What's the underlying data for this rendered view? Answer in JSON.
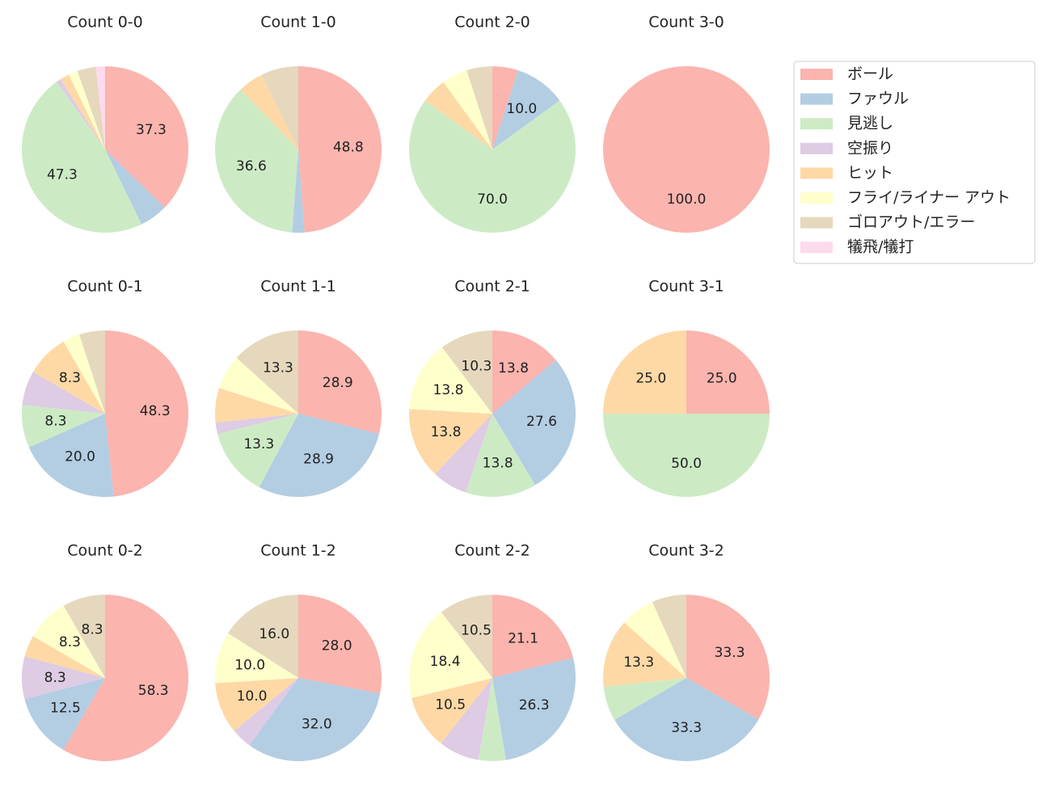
{
  "legend": {
    "labels": [
      "ボール",
      "ファウル",
      "見逃し",
      "空振り",
      "ヒット",
      "フライ/ライナー アウト",
      "ゴロアウト/エラー",
      "犠飛/犠打"
    ],
    "colors": [
      "#fbb4ae",
      "#b3cde3",
      "#ccebc5",
      "#decbe4",
      "#fed9a6",
      "#ffffcc",
      "#e5d8bd",
      "#fddaec"
    ]
  },
  "chart_data": [
    {
      "type": "pie",
      "title": "Count 0-0",
      "values": [
        37.3,
        5.5,
        47.3,
        0.9,
        1.8,
        1.8,
        3.6,
        1.8
      ],
      "value_labels": [
        "37.3",
        null,
        "47.3",
        null,
        null,
        null,
        null,
        null
      ]
    },
    {
      "type": "pie",
      "title": "Count 1-0",
      "values": [
        48.8,
        2.4,
        36.6,
        0,
        4.9,
        0,
        7.3,
        0
      ],
      "value_labels": [
        "48.8",
        null,
        "36.6",
        null,
        null,
        null,
        null,
        null
      ]
    },
    {
      "type": "pie",
      "title": "Count 2-0",
      "values": [
        5,
        10,
        70,
        0,
        5,
        5,
        5,
        0
      ],
      "value_labels": [
        null,
        "10.0",
        "70.0",
        null,
        null,
        null,
        null,
        null
      ]
    },
    {
      "type": "pie",
      "title": "Count 3-0",
      "values": [
        100,
        0,
        0,
        0,
        0,
        0,
        0,
        0
      ],
      "value_labels": [
        "100.0",
        null,
        null,
        null,
        null,
        null,
        null,
        null
      ]
    },
    {
      "type": "pie",
      "title": "Count 0-1",
      "values": [
        48.3,
        20,
        8.3,
        6.7,
        8.3,
        3.3,
        5,
        0
      ],
      "value_labels": [
        "48.3",
        "20.0",
        "8.3",
        null,
        "8.3",
        null,
        null,
        null
      ]
    },
    {
      "type": "pie",
      "title": "Count 1-1",
      "values": [
        28.9,
        28.9,
        13.3,
        2.2,
        6.7,
        6.7,
        13.3,
        0
      ],
      "value_labels": [
        "28.9",
        "28.9",
        "13.3",
        null,
        null,
        null,
        "13.3",
        null
      ]
    },
    {
      "type": "pie",
      "title": "Count 2-1",
      "values": [
        13.8,
        27.6,
        13.8,
        6.9,
        13.8,
        13.8,
        10.3,
        0
      ],
      "value_labels": [
        "13.8",
        "27.6",
        "13.8",
        null,
        "13.8",
        "13.8",
        "10.3",
        null
      ]
    },
    {
      "type": "pie",
      "title": "Count 3-1",
      "values": [
        25,
        0,
        50,
        0,
        25,
        0,
        0,
        0
      ],
      "value_labels": [
        "25.0",
        null,
        "50.0",
        null,
        "25.0",
        null,
        null,
        null
      ]
    },
    {
      "type": "pie",
      "title": "Count 0-2",
      "values": [
        58.3,
        12.5,
        0,
        8.3,
        4.2,
        8.3,
        8.3,
        0
      ],
      "value_labels": [
        "58.3",
        "12.5",
        null,
        "8.3",
        null,
        "8.3",
        "8.3",
        null
      ]
    },
    {
      "type": "pie",
      "title": "Count 1-2",
      "values": [
        28,
        32,
        0,
        4,
        10,
        10,
        16,
        0
      ],
      "value_labels": [
        "28.0",
        "32.0",
        null,
        null,
        "10.0",
        "10.0",
        "16.0",
        null
      ]
    },
    {
      "type": "pie",
      "title": "Count 2-2",
      "values": [
        21.1,
        26.3,
        5.3,
        7.9,
        10.5,
        18.4,
        10.5,
        0
      ],
      "value_labels": [
        "21.1",
        "26.3",
        null,
        null,
        "10.5",
        "18.4",
        "10.5",
        null
      ]
    },
    {
      "type": "pie",
      "title": "Count 3-2",
      "values": [
        33.3,
        33.3,
        6.7,
        0,
        13.3,
        6.7,
        6.7,
        0
      ],
      "value_labels": [
        "33.3",
        "33.3",
        null,
        null,
        "13.3",
        null,
        null,
        null
      ]
    }
  ]
}
